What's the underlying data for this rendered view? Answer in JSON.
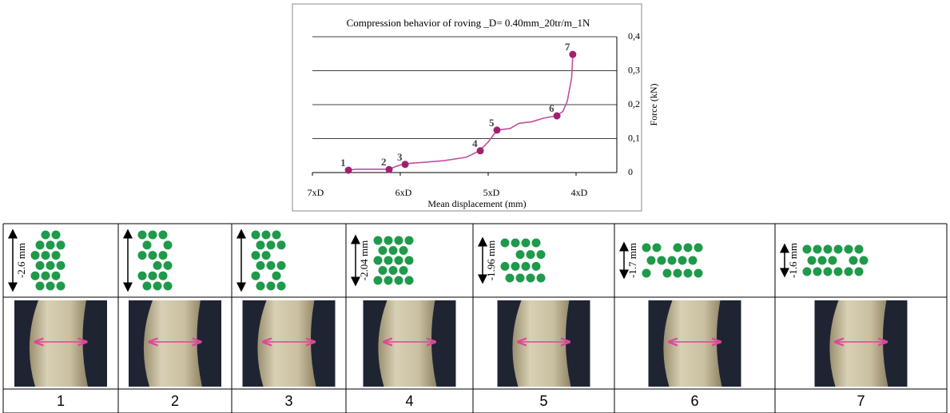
{
  "chart_data": {
    "type": "line",
    "title": "Compression behavior of roving _D= 0.40mm_20tr/m_1N",
    "x_label": "Mean displacement (mm)",
    "y_label": "Force (kN)",
    "color": "#c0509f",
    "xlim": [
      2.8,
      1.4
    ],
    "xticks": [
      {
        "value": 2.8,
        "label": "7xD"
      },
      {
        "value": 2.4,
        "label": "6xD"
      },
      {
        "value": 2.0,
        "label": "5xD"
      },
      {
        "value": 1.6,
        "label": "4xD"
      }
    ],
    "ylim": [
      0,
      0.4
    ],
    "yticks": [
      0,
      {
        "value": 0.1,
        "label": "0,1"
      },
      {
        "value": 0.2,
        "label": "0,2"
      },
      {
        "value": 0.3,
        "label": "0,3"
      },
      {
        "value": 0.4,
        "label": "0,4"
      }
    ],
    "grid": true,
    "x": [
      2.64,
      2.6,
      2.5,
      2.45,
      2.42,
      2.38,
      2.3,
      2.2,
      2.1,
      2.04,
      2.0,
      1.96,
      1.9,
      1.86,
      1.8,
      1.75,
      1.69,
      1.66,
      1.64,
      1.62,
      1.615
    ],
    "values": [
      0.007,
      0.01,
      0.01,
      0.01,
      0.018,
      0.026,
      0.03,
      0.035,
      0.045,
      0.064,
      0.09,
      0.125,
      0.13,
      0.145,
      0.15,
      0.16,
      0.167,
      0.18,
      0.21,
      0.28,
      0.348
    ],
    "points": {
      "color": "#a0226e",
      "labels": [
        "1",
        "2",
        "3",
        "4",
        "5",
        "6",
        "7"
      ],
      "x": [
        2.636,
        2.451,
        2.378,
        2.036,
        1.96,
        1.687,
        1.615
      ],
      "values": [
        0.007,
        0.009,
        0.024,
        0.064,
        0.125,
        0.167,
        0.348
      ]
    }
  },
  "panels": [
    {
      "label": "1",
      "dimension": "-2.6 mm"
    },
    {
      "label": "2"
    },
    {
      "label": "3"
    },
    {
      "label": "4",
      "dimension": "-2.04 mm"
    },
    {
      "label": "5",
      "dimension": "-1.96 mm"
    },
    {
      "label": "6",
      "dimension": "-1.7 mm"
    },
    {
      "label": "7",
      "dimension": "-1.6 mm"
    }
  ]
}
